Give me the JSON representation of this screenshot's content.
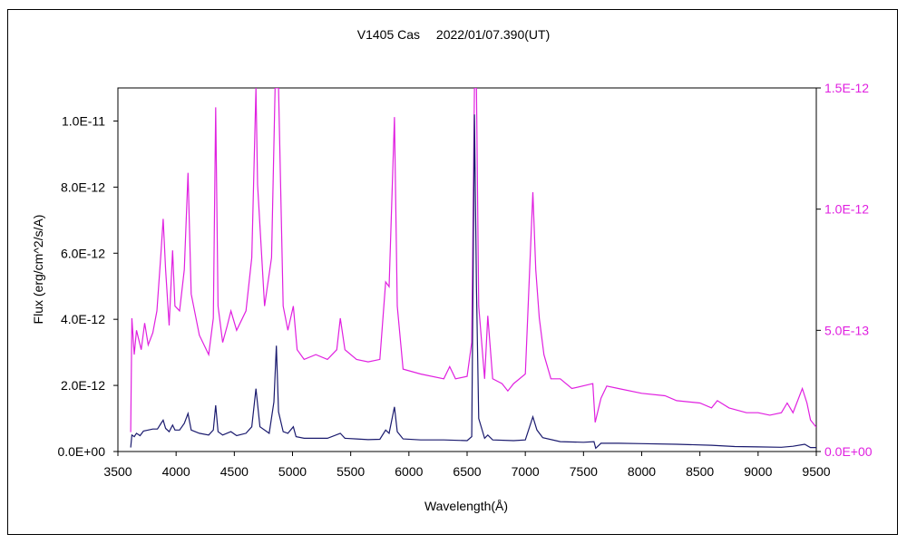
{
  "chart_data": {
    "type": "line",
    "title": "V1405 Cas　 2022/01/07.390(UT)",
    "xlabel": "Wavelength(Å)",
    "ylabel": "Flux (erg/cm^2/s/A)",
    "xlim": [
      3500,
      9500
    ],
    "ylim_left": [
      0,
      1.1e-11
    ],
    "ylim_right": [
      0,
      1.5e-12
    ],
    "grid": false,
    "legend": "none",
    "x_ticks": [
      "3500",
      "4000",
      "4500",
      "5000",
      "5500",
      "6000",
      "6500",
      "7000",
      "7500",
      "8000",
      "8500",
      "9000",
      "9500"
    ],
    "y_ticks_left": [
      "0.0E+00",
      "2.0E-12",
      "4.0E-12",
      "6.0E-12",
      "8.0E-12",
      "1.0E-11"
    ],
    "y_ticks_right": [
      "0.0E+00",
      "5.0E-13",
      "1.0E-12",
      "1.5E-12"
    ],
    "series": [
      {
        "axis": "left",
        "color": "#1a1a6e",
        "points": [
          [
            3610,
            1.2e-13
          ],
          [
            3620,
            5e-13
          ],
          [
            3640,
            4.5e-13
          ],
          [
            3660,
            5.5e-13
          ],
          [
            3690,
            4.8e-13
          ],
          [
            3720,
            6.2e-13
          ],
          [
            3760,
            6.5e-13
          ],
          [
            3800,
            6.8e-13
          ],
          [
            3840,
            6.8e-13
          ],
          [
            3870,
            8.5e-13
          ],
          [
            3889,
            9.5e-13
          ],
          [
            3910,
            7e-13
          ],
          [
            3940,
            6e-13
          ],
          [
            3970,
            8e-13
          ],
          [
            3990,
            6.5e-13
          ],
          [
            4030,
            6.5e-13
          ],
          [
            4070,
            8.5e-13
          ],
          [
            4102,
            1.15e-12
          ],
          [
            4130,
            6.5e-13
          ],
          [
            4200,
            5.5e-13
          ],
          [
            4280,
            5e-13
          ],
          [
            4320,
            6.5e-13
          ],
          [
            4340,
            1.4e-12
          ],
          [
            4360,
            6e-13
          ],
          [
            4400,
            5e-13
          ],
          [
            4471,
            6e-13
          ],
          [
            4520,
            4.8e-13
          ],
          [
            4600,
            5.5e-13
          ],
          [
            4650,
            7.5e-13
          ],
          [
            4686,
            1.9e-12
          ],
          [
            4720,
            7.5e-13
          ],
          [
            4800,
            5.5e-13
          ],
          [
            4840,
            1.5e-12
          ],
          [
            4861,
            3.2e-12
          ],
          [
            4880,
            1.2e-12
          ],
          [
            4920,
            6e-13
          ],
          [
            4960,
            5.5e-13
          ],
          [
            5007,
            7.5e-13
          ],
          [
            5030,
            4.5e-13
          ],
          [
            5100,
            4e-13
          ],
          [
            5200,
            4e-13
          ],
          [
            5300,
            4e-13
          ],
          [
            5411,
            5.5e-13
          ],
          [
            5450,
            4e-13
          ],
          [
            5550,
            3.8e-13
          ],
          [
            5650,
            3.6e-13
          ],
          [
            5750,
            3.7e-13
          ],
          [
            5800,
            6.5e-13
          ],
          [
            5830,
            5.5e-13
          ],
          [
            5876,
            1.35e-12
          ],
          [
            5900,
            6e-13
          ],
          [
            5950,
            3.8e-13
          ],
          [
            6100,
            3.5e-13
          ],
          [
            6300,
            3.5e-13
          ],
          [
            6500,
            3.3e-13
          ],
          [
            6540,
            4.5e-13
          ],
          [
            6563,
            1.02e-11
          ],
          [
            6580,
            5e-12
          ],
          [
            6600,
            1e-12
          ],
          [
            6650,
            4e-13
          ],
          [
            6678,
            5e-13
          ],
          [
            6720,
            3.5e-13
          ],
          [
            6900,
            3.3e-13
          ],
          [
            7000,
            3.5e-13
          ],
          [
            7065,
            1.05e-12
          ],
          [
            7100,
            6.5e-13
          ],
          [
            7150,
            4.2e-13
          ],
          [
            7300,
            3e-13
          ],
          [
            7500,
            2.8e-13
          ],
          [
            7590,
            3e-13
          ],
          [
            7605,
            1e-13
          ],
          [
            7650,
            2.5e-13
          ],
          [
            7800,
            2.5e-13
          ],
          [
            8000,
            2.4e-13
          ],
          [
            8300,
            2.2e-13
          ],
          [
            8600,
            1.9e-13
          ],
          [
            8800,
            1.5e-13
          ],
          [
            9000,
            1.4e-13
          ],
          [
            9200,
            1.3e-13
          ],
          [
            9300,
            1.6e-13
          ],
          [
            9400,
            2.2e-13
          ],
          [
            9450,
            1.2e-13
          ],
          [
            9500,
            1.2e-13
          ]
        ]
      },
      {
        "axis": "right",
        "color": "#e020e0",
        "points": [
          [
            3610,
            8e-14
          ],
          [
            3620,
            5.5e-13
          ],
          [
            3640,
            4e-13
          ],
          [
            3660,
            5e-13
          ],
          [
            3700,
            4.2e-13
          ],
          [
            3730,
            5.3e-13
          ],
          [
            3760,
            4.4e-13
          ],
          [
            3800,
            4.9e-13
          ],
          [
            3835,
            5.8e-13
          ],
          [
            3870,
            8.2e-13
          ],
          [
            3889,
            9.6e-13
          ],
          [
            3910,
            7.5e-13
          ],
          [
            3940,
            5.2e-13
          ],
          [
            3970,
            8.3e-13
          ],
          [
            3990,
            6e-13
          ],
          [
            4030,
            5.8e-13
          ],
          [
            4070,
            7.5e-13
          ],
          [
            4102,
            1.15e-12
          ],
          [
            4130,
            6.5e-13
          ],
          [
            4200,
            4.8e-13
          ],
          [
            4280,
            4e-13
          ],
          [
            4320,
            5.5e-13
          ],
          [
            4340,
            1.42e-12
          ],
          [
            4360,
            6e-13
          ],
          [
            4400,
            4.5e-13
          ],
          [
            4440,
            5.2e-13
          ],
          [
            4471,
            5.8e-13
          ],
          [
            4520,
            5e-13
          ],
          [
            4600,
            5.8e-13
          ],
          [
            4650,
            8e-13
          ],
          [
            4686,
            1.5e-12
          ],
          [
            4700,
            1.1e-12
          ],
          [
            4760,
            6e-13
          ],
          [
            4820,
            8e-13
          ],
          [
            4850,
            1.5e-12
          ],
          [
            4880,
            1.5e-12
          ],
          [
            4920,
            6e-13
          ],
          [
            4960,
            5e-13
          ],
          [
            5007,
            6e-13
          ],
          [
            5040,
            4.2e-13
          ],
          [
            5100,
            3.8e-13
          ],
          [
            5200,
            4e-13
          ],
          [
            5300,
            3.8e-13
          ],
          [
            5380,
            4.2e-13
          ],
          [
            5411,
            5.5e-13
          ],
          [
            5450,
            4.2e-13
          ],
          [
            5550,
            3.8e-13
          ],
          [
            5650,
            3.7e-13
          ],
          [
            5750,
            3.8e-13
          ],
          [
            5800,
            7e-13
          ],
          [
            5830,
            6.8e-13
          ],
          [
            5876,
            1.38e-12
          ],
          [
            5900,
            6e-13
          ],
          [
            5950,
            3.4e-13
          ],
          [
            6100,
            3.2e-13
          ],
          [
            6300,
            3e-13
          ],
          [
            6350,
            3.5e-13
          ],
          [
            6400,
            3e-13
          ],
          [
            6500,
            3.1e-13
          ],
          [
            6540,
            4.5e-13
          ],
          [
            6563,
            1.5e-12
          ],
          [
            6580,
            1.5e-12
          ],
          [
            6600,
            6e-13
          ],
          [
            6650,
            3e-13
          ],
          [
            6678,
            5.6e-13
          ],
          [
            6720,
            3e-13
          ],
          [
            6800,
            2.8e-13
          ],
          [
            6850,
            2.5e-13
          ],
          [
            6900,
            2.8e-13
          ],
          [
            7000,
            3.2e-13
          ],
          [
            7065,
            1.07e-12
          ],
          [
            7090,
            7.5e-13
          ],
          [
            7120,
            5.5e-13
          ],
          [
            7160,
            4e-13
          ],
          [
            7220,
            3e-13
          ],
          [
            7300,
            3e-13
          ],
          [
            7400,
            2.6e-13
          ],
          [
            7580,
            2.8e-13
          ],
          [
            7600,
            1.2e-13
          ],
          [
            7650,
            2.2e-13
          ],
          [
            7700,
            2.7e-13
          ],
          [
            7800,
            2.6e-13
          ],
          [
            8000,
            2.4e-13
          ],
          [
            8200,
            2.3e-13
          ],
          [
            8300,
            2.1e-13
          ],
          [
            8500,
            2e-13
          ],
          [
            8600,
            1.8e-13
          ],
          [
            8650,
            2.1e-13
          ],
          [
            8750,
            1.8e-13
          ],
          [
            8900,
            1.6e-13
          ],
          [
            9000,
            1.6e-13
          ],
          [
            9100,
            1.5e-13
          ],
          [
            9200,
            1.6e-13
          ],
          [
            9250,
            2e-13
          ],
          [
            9300,
            1.6e-13
          ],
          [
            9380,
            2.6e-13
          ],
          [
            9420,
            2e-13
          ],
          [
            9450,
            1.3e-13
          ],
          [
            9500,
            1e-13
          ]
        ]
      }
    ]
  }
}
